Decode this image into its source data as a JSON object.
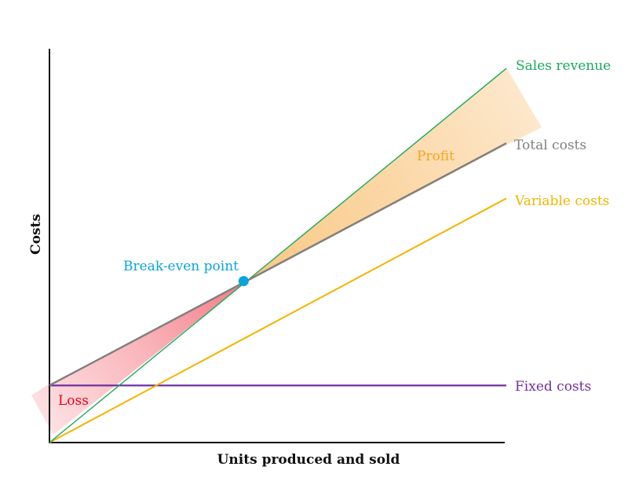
{
  "chart_data": {
    "type": "line",
    "title": "",
    "xlabel": "Units produced and sold",
    "ylabel": "Costs",
    "xlim": [
      0,
      10
    ],
    "ylim": [
      0,
      10
    ],
    "grid": false,
    "ticks": "none",
    "series": [
      {
        "name": "Sales revenue",
        "x": [
          0,
          10
        ],
        "y": [
          0,
          9.5
        ],
        "color": "#1aa95b"
      },
      {
        "name": "Total costs",
        "x": [
          0,
          10
        ],
        "y": [
          1.45,
          7.6
        ],
        "color": "#7f7f7f"
      },
      {
        "name": "Variable costs",
        "x": [
          0,
          10
        ],
        "y": [
          0,
          6.2
        ],
        "color": "#f4b400"
      },
      {
        "name": "Fixed costs",
        "x": [
          0,
          10
        ],
        "y": [
          1.45,
          1.45
        ],
        "color": "#7030a0"
      }
    ],
    "break_even": {
      "label": "Break-even point",
      "x": 4.25,
      "y": 4.1,
      "color": "#0aa4dd"
    },
    "regions": [
      {
        "label": "Loss",
        "color": "#e8001c",
        "fill": "#f7838e"
      },
      {
        "label": "Profit",
        "color": "#f2a51c",
        "fill": "#fbd59a"
      }
    ]
  }
}
